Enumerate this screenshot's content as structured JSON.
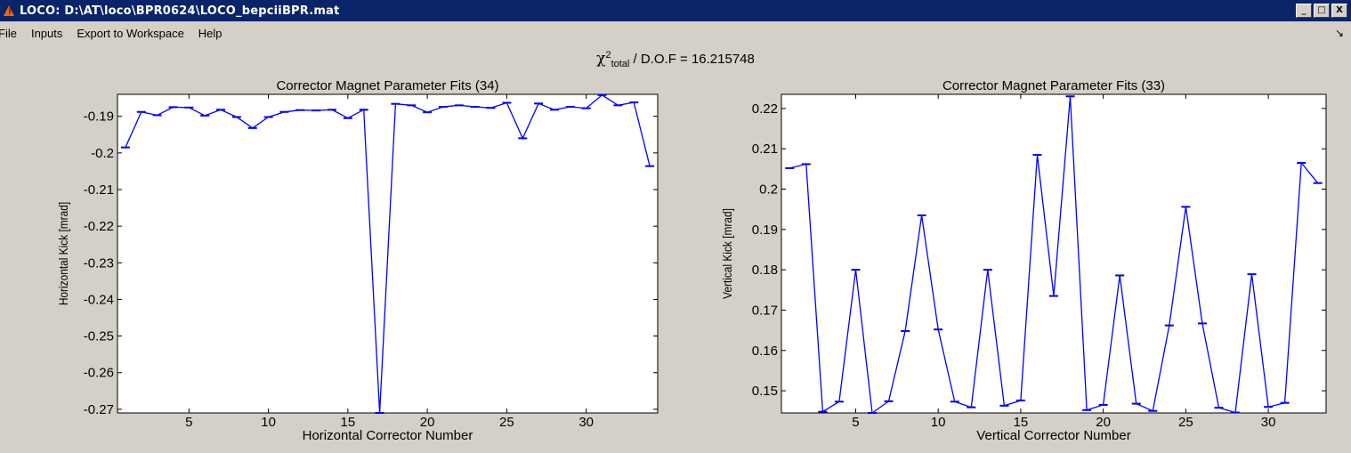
{
  "window": {
    "title": "LOCO:  D:\\AT\\loco\\BPR0624\\LOCO_bepciiBPR.mat",
    "buttons": [
      "_",
      "□",
      "X"
    ]
  },
  "menu": [
    "File",
    "Inputs",
    "Export to Workspace",
    "Help"
  ],
  "chi": {
    "symbol": "χ",
    "sup": "2",
    "sub": "total",
    "text": "/ D.O.F = 16.215748"
  },
  "colors": {
    "line": "#0000ff",
    "title_bg": "#0a246a",
    "bg": "#d4d0c8"
  },
  "chart_data": [
    {
      "type": "line",
      "title": "Corrector Magnet Parameter Fits (34)",
      "xlabel": "Horizontal Corrector Number",
      "ylabel": "Horizontal Kick [mrad]",
      "xlim": [
        0.5,
        34.5
      ],
      "ylim": [
        -0.271,
        -0.184
      ],
      "xticks": [
        5,
        10,
        15,
        20,
        25,
        30
      ],
      "yticks": [
        -0.19,
        -0.2,
        -0.21,
        -0.22,
        -0.23,
        -0.24,
        -0.25,
        -0.26,
        -0.27
      ],
      "ytick_labels": [
        "-0.19",
        "-0.2",
        "-0.21",
        "-0.22",
        "-0.23",
        "-0.24",
        "-0.25",
        "-0.26",
        "-0.27"
      ],
      "x": [
        1,
        2,
        3,
        4,
        5,
        6,
        7,
        8,
        9,
        10,
        11,
        12,
        13,
        14,
        15,
        16,
        17,
        18,
        19,
        20,
        21,
        22,
        23,
        24,
        25,
        26,
        27,
        28,
        29,
        30,
        31,
        32,
        33,
        34
      ],
      "y": [
        -0.1985,
        -0.1888,
        -0.1897,
        -0.1875,
        -0.1876,
        -0.1898,
        -0.1882,
        -0.1902,
        -0.1932,
        -0.1902,
        -0.1888,
        -0.1883,
        -0.1884,
        -0.1882,
        -0.1905,
        -0.1882,
        -0.271,
        -0.1866,
        -0.187,
        -0.1889,
        -0.1874,
        -0.187,
        -0.1874,
        -0.1877,
        -0.1863,
        -0.196,
        -0.1865,
        -0.1882,
        -0.1874,
        -0.1878,
        -0.1842,
        -0.187,
        -0.1862,
        -0.2036
      ]
    },
    {
      "type": "line",
      "title": "Corrector Magnet Parameter Fits (33)",
      "xlabel": "Vertical Corrector Number",
      "ylabel": "Vertical Kick [mrad]",
      "xlim": [
        0.5,
        33.5
      ],
      "ylim": [
        0.1445,
        0.2235
      ],
      "xticks": [
        5,
        10,
        15,
        20,
        25,
        30
      ],
      "yticks": [
        0.15,
        0.16,
        0.17,
        0.18,
        0.19,
        0.2,
        0.21,
        0.22
      ],
      "ytick_labels": [
        "0.15",
        "0.16",
        "0.17",
        "0.18",
        "0.19",
        "0.2",
        "0.21",
        "0.22"
      ],
      "x": [
        1,
        2,
        3,
        4,
        5,
        6,
        7,
        8,
        9,
        10,
        11,
        12,
        13,
        14,
        15,
        16,
        17,
        18,
        19,
        20,
        21,
        22,
        23,
        24,
        25,
        26,
        27,
        28,
        29,
        30,
        31,
        32,
        33
      ],
      "y": [
        0.2052,
        0.2062,
        0.1448,
        0.1473,
        0.18,
        0.1445,
        0.1474,
        0.1648,
        0.1935,
        0.1652,
        0.1473,
        0.1459,
        0.18,
        0.1463,
        0.1476,
        0.2085,
        0.1735,
        0.223,
        0.1452,
        0.1465,
        0.1786,
        0.1468,
        0.145,
        0.1662,
        0.1956,
        0.1667,
        0.1458,
        0.1446,
        0.1789,
        0.146,
        0.147,
        0.2065,
        0.2015
      ]
    }
  ]
}
